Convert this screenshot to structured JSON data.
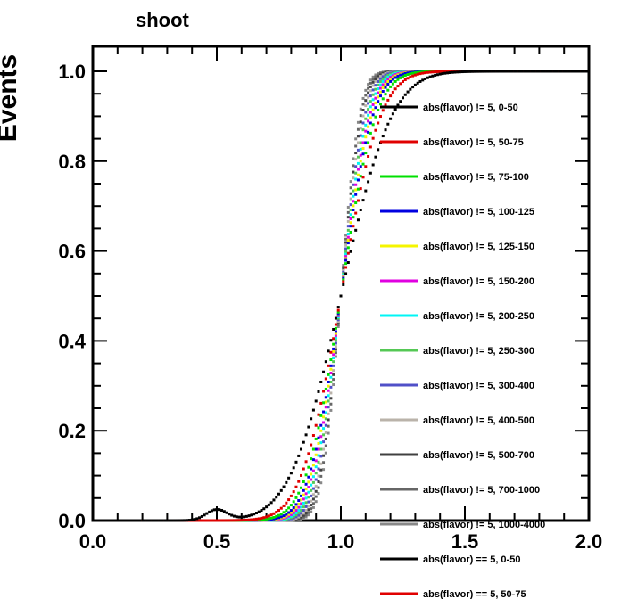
{
  "chart_data": {
    "type": "line",
    "title": "shoot",
    "xlabel": "",
    "ylabel": "Events",
    "xlim": [
      0.0,
      2.0
    ],
    "ylim": [
      0.0,
      1.05
    ],
    "x_ticks": [
      "0.0",
      "0.5",
      "1.0",
      "1.5",
      "2.0"
    ],
    "y_ticks": [
      "0.0",
      "0.2",
      "0.4",
      "0.6",
      "0.8",
      "1.0"
    ],
    "grid": false,
    "legend_position": "inside-right",
    "series": [
      {
        "name": "abs(flavor) != 5, 0-50",
        "color": "#000000",
        "params": {
          "mu": 1.0,
          "sigma": 0.16
        }
      },
      {
        "name": "abs(flavor) != 5, 50-75",
        "color": "#e00000",
        "params": {
          "mu": 1.0,
          "sigma": 0.125
        }
      },
      {
        "name": "abs(flavor) != 5, 75-100",
        "color": "#00e000",
        "params": {
          "mu": 1.0,
          "sigma": 0.11
        }
      },
      {
        "name": "abs(flavor) != 5, 100-125",
        "color": "#0000e0",
        "params": {
          "mu": 1.0,
          "sigma": 0.1
        }
      },
      {
        "name": "abs(flavor) != 5, 125-150",
        "color": "#f5f500",
        "params": {
          "mu": 1.0,
          "sigma": 0.095
        }
      },
      {
        "name": "abs(flavor) != 5, 150-200",
        "color": "#e000e0",
        "params": {
          "mu": 1.0,
          "sigma": 0.09
        }
      },
      {
        "name": "abs(flavor) != 5, 200-250",
        "color": "#00f5f5",
        "params": {
          "mu": 1.0,
          "sigma": 0.085
        }
      },
      {
        "name": "abs(flavor) != 5, 250-300",
        "color": "#55c855",
        "params": {
          "mu": 1.0,
          "sigma": 0.08
        }
      },
      {
        "name": "abs(flavor) != 5, 300-400",
        "color": "#5050c8",
        "params": {
          "mu": 1.0,
          "sigma": 0.075
        }
      },
      {
        "name": "abs(flavor) != 5, 400-500",
        "color": "#bab3aa",
        "params": {
          "mu": 1.0,
          "sigma": 0.07
        }
      },
      {
        "name": "abs(flavor) != 5, 500-700",
        "color": "#404040",
        "params": {
          "mu": 1.0,
          "sigma": 0.066
        }
      },
      {
        "name": "abs(flavor) != 5, 700-1000",
        "color": "#666666",
        "params": {
          "mu": 1.0,
          "sigma": 0.062
        }
      },
      {
        "name": "abs(flavor) != 5, 1000-4000",
        "color": "#888888",
        "params": {
          "mu": 1.0,
          "sigma": 0.058
        }
      },
      {
        "name": "abs(flavor) == 5, 0-50",
        "color": "#000000",
        "params": null
      },
      {
        "name": "abs(flavor) == 5, 50-75",
        "color": "#e00000",
        "params": null
      }
    ]
  }
}
